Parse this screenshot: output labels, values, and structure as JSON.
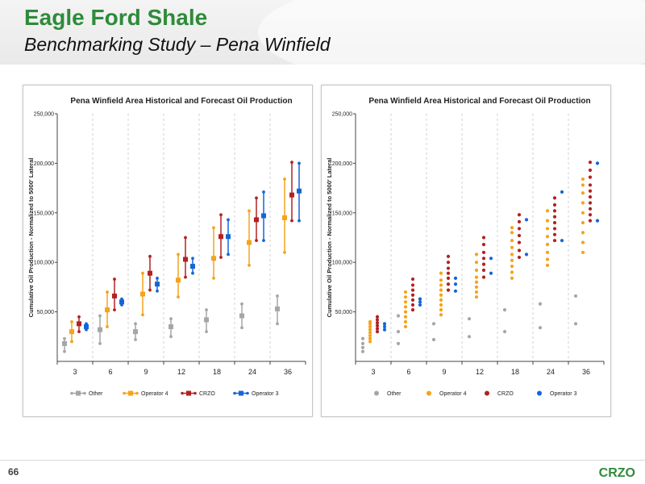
{
  "slide": {
    "title": "Eagle Ford Shale",
    "subtitle": "Benchmarking Study – Pena Winfield",
    "page_number": "66",
    "brand": "CRZO",
    "colors": {
      "title_green": "#2e8b3a",
      "brand_green": "#2e8b3a"
    }
  },
  "chart_data": [
    {
      "type": "line",
      "style": "range-markers",
      "title": "Pena Winfield Area Historical and Forecast Oil Production",
      "xlabel": "",
      "ylabel": "Cumulative Oil Production - Normalized to 5000' Lateral",
      "categories": [
        "3",
        "6",
        "9",
        "12",
        "18",
        "24",
        "36"
      ],
      "ylim": [
        0,
        250000
      ],
      "yticks": [
        "50,000",
        "100,000",
        "150,000",
        "200,000",
        "250,000"
      ],
      "ytick_values": [
        50000,
        100000,
        150000,
        200000,
        250000
      ],
      "legend_position": "bottom",
      "grid": "vertical-dashed",
      "series": [
        {
          "name": "Other",
          "color": "#a6a6a6",
          "min": [
            10000,
            18000,
            22000,
            25000,
            30000,
            34000,
            38000
          ],
          "mid": [
            18000,
            32000,
            30000,
            35000,
            42000,
            46000,
            53000
          ],
          "max": [
            23000,
            46000,
            38000,
            43000,
            52000,
            58000,
            66000
          ]
        },
        {
          "name": "Operator 4",
          "color": "#f5a31a",
          "min": [
            20000,
            35000,
            47000,
            65000,
            84000,
            97000,
            110000
          ],
          "mid": [
            30000,
            52000,
            68000,
            82000,
            104000,
            120000,
            145000
          ],
          "max": [
            40000,
            70000,
            89000,
            108000,
            135000,
            152000,
            184000
          ]
        },
        {
          "name": "CRZO",
          "color": "#b22222",
          "min": [
            30000,
            52000,
            72000,
            85000,
            105000,
            122000,
            142000
          ],
          "mid": [
            38000,
            66000,
            89000,
            103000,
            126000,
            143000,
            168000
          ],
          "max": [
            45000,
            83000,
            106000,
            125000,
            148000,
            165000,
            201000
          ]
        },
        {
          "name": "Operator 3",
          "color": "#1565d8",
          "min": [
            32000,
            57000,
            71000,
            89000,
            108000,
            122000,
            142000
          ],
          "mid": [
            35000,
            60000,
            78000,
            96000,
            126000,
            147000,
            172000
          ],
          "max": [
            38000,
            63000,
            84000,
            104000,
            143000,
            171000,
            200000
          ]
        }
      ]
    },
    {
      "type": "scatter",
      "title": "Pena Winfield Area Historical and Forecast Oil Production",
      "xlabel": "",
      "ylabel": "Cumulative Oil Production - Normalized to 5000' Lateral",
      "categories": [
        "3",
        "6",
        "9",
        "12",
        "18",
        "24",
        "36"
      ],
      "ylim": [
        0,
        250000
      ],
      "yticks": [
        "50,000",
        "100,000",
        "150,000",
        "200,000",
        "250,000"
      ],
      "ytick_values": [
        50000,
        100000,
        150000,
        200000,
        250000
      ],
      "legend_position": "bottom",
      "grid": "vertical-dashed",
      "series": [
        {
          "name": "Other",
          "color": "#a6a6a6",
          "points": [
            [
              [
                10000,
                14000,
                18000,
                23000
              ]
            ],
            [
              [
                18000,
                30000,
                46000
              ]
            ],
            [
              [
                22000,
                38000
              ]
            ],
            [
              [
                25000,
                43000
              ]
            ],
            [
              [
                30000,
                52000
              ]
            ],
            [
              [
                34000,
                58000
              ]
            ],
            [
              [
                38000,
                66000
              ]
            ]
          ]
        },
        {
          "name": "Operator 4",
          "color": "#f5a31a",
          "points": [
            [
              [
                20000,
                23000,
                26000,
                29000,
                32000,
                35000,
                38000,
                40000
              ]
            ],
            [
              [
                35000,
                40000,
                45000,
                50000,
                55000,
                60000,
                65000,
                70000
              ]
            ],
            [
              [
                47000,
                52000,
                57000,
                62000,
                67000,
                72000,
                77000,
                82000,
                89000
              ]
            ],
            [
              [
                65000,
                70000,
                75000,
                80000,
                85000,
                92000,
                100000,
                108000
              ]
            ],
            [
              [
                84000,
                90000,
                96000,
                102000,
                108000,
                115000,
                122000,
                130000,
                135000
              ]
            ],
            [
              [
                97000,
                103000,
                110000,
                118000,
                126000,
                134000,
                142000,
                152000
              ]
            ],
            [
              [
                110000,
                120000,
                130000,
                140000,
                150000,
                160000,
                170000,
                178000,
                184000
              ]
            ]
          ]
        },
        {
          "name": "CRZO",
          "color": "#b22222",
          "points": [
            [
              [
                30000,
                33000,
                36000,
                39000,
                42000,
                45000
              ]
            ],
            [
              [
                52000,
                57000,
                62000,
                67000,
                72000,
                77000,
                83000
              ]
            ],
            [
              [
                72000,
                78000,
                84000,
                89000,
                94000,
                100000,
                106000
              ]
            ],
            [
              [
                85000,
                92000,
                98000,
                104000,
                110000,
                118000,
                125000
              ]
            ],
            [
              [
                105000,
                112000,
                120000,
                127000,
                134000,
                141000,
                148000
              ]
            ],
            [
              [
                122000,
                128000,
                134000,
                140000,
                146000,
                152000,
                158000,
                165000
              ]
            ],
            [
              [
                142000,
                148000,
                154000,
                160000,
                166000,
                172000,
                178000,
                186000,
                193000,
                201000
              ]
            ]
          ]
        },
        {
          "name": "Operator 3",
          "color": "#1565d8",
          "points": [
            [
              [
                32000,
                35000,
                38000
              ]
            ],
            [
              [
                57000,
                60000,
                63000
              ]
            ],
            [
              [
                71000,
                78000,
                84000
              ]
            ],
            [
              [
                89000,
                104000
              ]
            ],
            [
              [
                108000,
                143000
              ]
            ],
            [
              [
                122000,
                171000
              ]
            ],
            [
              [
                142000,
                200000
              ]
            ]
          ]
        }
      ]
    }
  ]
}
